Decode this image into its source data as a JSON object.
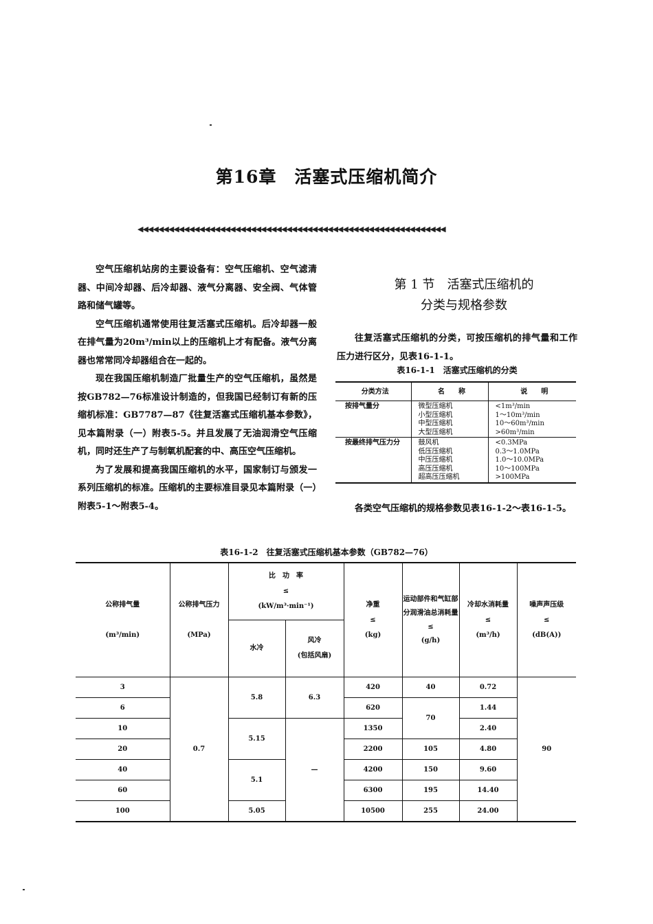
{
  "chapter_title": "第16章　活塞式压缩机简介",
  "ornament": "◀◀◀◀◀◀◀◀◀◀◀◀◀◀◀◀◀◀◀◀◀◀◀◀◀◀◀◀◀◀◀◀◀◀◀◀◀◀◀◀◀◀◀◀◀◀◀◀◀◀◀◀◀◀◀◀◀◀◀◀",
  "left_paragraphs": [
    "空气压缩机站房的主要设备有：空气压缩机、空气滤清器、中间冷却器、后冷却器、液气分离器、安全阀、气体管路和储气罐等。",
    "空气压缩机通常使用往复活塞式压缩机。后冷却器一般在排气量为20m³/min以上的压缩机上才有配备。液气分离器也常常同冷却器组合在一起的。",
    "现在我国压缩机制造厂批量生产的空气压缩机，虽然是按GB782—76标准设计制造的，但我国已经制订有新的压缩机标准：GB7787—87《往复活塞式压缩机基本参数》，见本篇附录（一）附表5-5。并且发展了无油润滑空气压缩机，同时还生产了与制氧机配套的中、高压空气压缩机。",
    "为了发展和提高我国压缩机的水平，国家制订与颁发一系列压缩机的标准。压缩机的主要标准目录见本篇附录（一）附表5-1～附表5-4。"
  ],
  "section_title_line1": "第 1 节　活塞式压缩机的",
  "section_title_line2": "分类与规格参数",
  "right_para1": "往复活塞式压缩机的分类，可按压缩机的排气量和工作压力进行区分，见表16-1-1。",
  "right_para2": "各类空气压缩机的规格参数见表16-1-2～表16-1-5。",
  "table1": {
    "caption": "表16-1-1　活塞式压缩机的分类",
    "headers": [
      "分类方法",
      "名　　称",
      "说　　明"
    ],
    "groups": [
      {
        "method": "按排气量分",
        "names": [
          "微型压缩机",
          "小型压缩机",
          "中型压缩机",
          "大型压缩机"
        ],
        "notes": [
          "<1m³/min",
          "1～10m³/min",
          "10～60m³/min",
          ">60m³/min"
        ]
      },
      {
        "method": "按最终排气压力分",
        "names": [
          "鼓风机",
          "低压压缩机",
          "中压压缩机",
          "高压压缩机",
          "超高压压缩机"
        ],
        "notes": [
          "<0.3MPa",
          "0.3～1.0MPa",
          "1.0～10.0MPa",
          "10～100MPa",
          ">100MPa"
        ]
      }
    ]
  },
  "table2": {
    "caption": "表16-1-2　往复活塞式压缩机基本参数（GB782—76）",
    "headers": {
      "flow": "公称排气量",
      "flow_unit": "(m³/min)",
      "pressure": "公称排气压力",
      "pressure_unit": "(MPa)",
      "power": "比　功　率",
      "power_le": "≤",
      "power_unit": "(kW/m³·min⁻¹)",
      "water": "水冷",
      "air": "风冷",
      "air_note": "(包括风扇)",
      "weight": "净重",
      "weight_le": "≤",
      "weight_unit": "(kg)",
      "oil": "运动部件和气缸部分润滑油总消耗量",
      "oil_le": "≤",
      "oil_unit": "(g/h)",
      "cool": "冷却水消耗量",
      "cool_le": "≤",
      "cool_unit": "(m³/h)",
      "noise": "噪声声压级",
      "noise_le": "≤",
      "noise_unit": "(dB(A))"
    },
    "flow": [
      "3",
      "6",
      "10",
      "20",
      "40",
      "60",
      "100"
    ],
    "pressure": "0.7",
    "water_cooled": [
      "5.8",
      "5.15",
      "5.1",
      "5.05"
    ],
    "air_cooled": [
      "6.3",
      "—"
    ],
    "weight": [
      "420",
      "620",
      "1350",
      "2200",
      "4200",
      "6300",
      "10500"
    ],
    "oil": [
      "40",
      "70",
      "105",
      "150",
      "195",
      "255"
    ],
    "cooling_water": [
      "0.72",
      "1.44",
      "2.40",
      "4.80",
      "9.60",
      "14.40",
      "24.00"
    ],
    "noise": "90"
  }
}
